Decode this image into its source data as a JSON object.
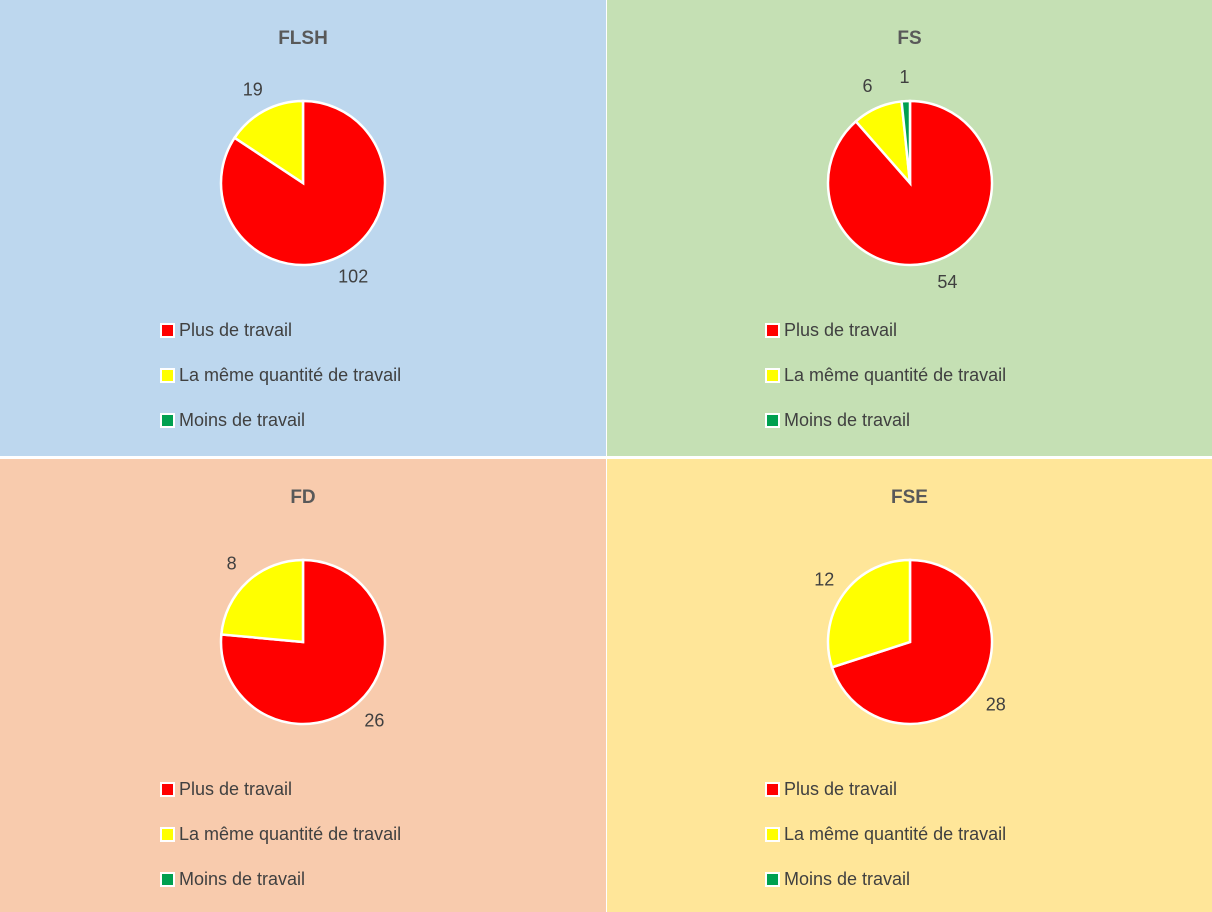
{
  "legend": {
    "items": [
      {
        "label": "Plus de travail",
        "color": "#ff0000"
      },
      {
        "label": "La même quantité de travail",
        "color": "#ffff00"
      },
      {
        "label": "Moins de travail",
        "color": "#00a050"
      }
    ]
  },
  "panel_colors": [
    "#bdd7ee",
    "#c5e0b4",
    "#f8cbad",
    "#ffe699"
  ],
  "chart_data": [
    {
      "type": "pie",
      "title": "FLSH",
      "categories": [
        "Plus de travail",
        "La même quantité de travail",
        "Moins de travail"
      ],
      "values": [
        102,
        19,
        0
      ],
      "labels": [
        "102",
        "19",
        ""
      ],
      "colors": [
        "#ff0000",
        "#ffff00",
        "#00a050"
      ],
      "legend": "bottom"
    },
    {
      "type": "pie",
      "title": "FS",
      "categories": [
        "Plus de travail",
        "La même quantité de travail",
        "Moins de travail"
      ],
      "values": [
        54,
        6,
        1
      ],
      "labels": [
        "54",
        "6",
        "1"
      ],
      "colors": [
        "#ff0000",
        "#ffff00",
        "#00a050"
      ],
      "legend": "bottom"
    },
    {
      "type": "pie",
      "title": "FD",
      "categories": [
        "Plus de travail",
        "La même quantité de travail",
        "Moins de travail"
      ],
      "values": [
        26,
        8,
        0
      ],
      "labels": [
        "26",
        "8",
        ""
      ],
      "colors": [
        "#ff0000",
        "#ffff00",
        "#00a050"
      ],
      "legend": "bottom"
    },
    {
      "type": "pie",
      "title": "FSE",
      "categories": [
        "Plus de travail",
        "La même quantité de travail",
        "Moins de travail"
      ],
      "values": [
        28,
        12,
        0
      ],
      "labels": [
        "28",
        "12",
        ""
      ],
      "colors": [
        "#ff0000",
        "#ffff00",
        "#00a050"
      ],
      "legend": "bottom"
    }
  ]
}
